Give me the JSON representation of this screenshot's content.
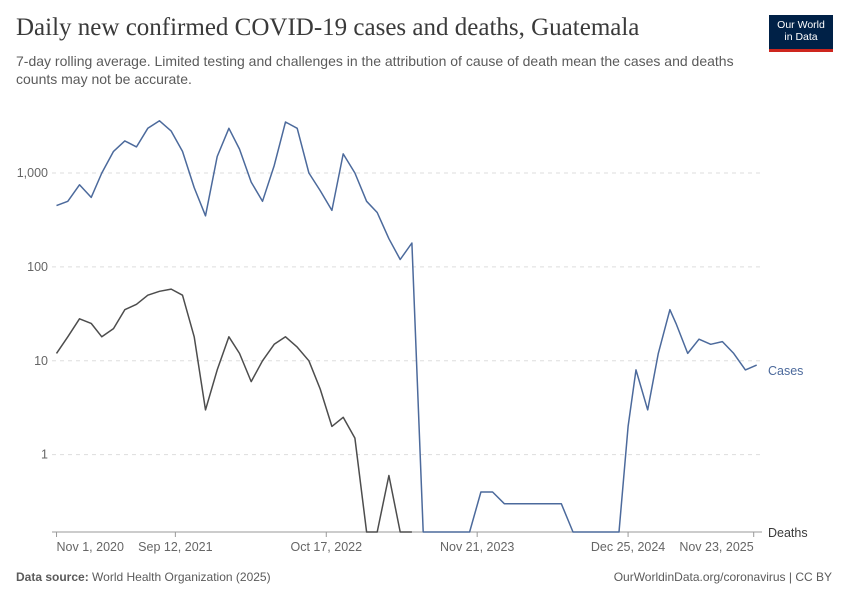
{
  "header": {
    "title": "Daily new confirmed COVID-19 cases and deaths, Guatemala",
    "subtitle": "7-day rolling average. Limited testing and challenges in the attribution of cause of death mean the cases and deaths counts may not be accurate."
  },
  "logo": {
    "line1": "Our World",
    "line2": "in Data",
    "bg_color": "#002147",
    "accent_color": "#ce261e"
  },
  "footer": {
    "source_label": "Data source:",
    "source_text": "World Health Organization (2025)",
    "url_text": "OurWorldinData.org/coronavirus | CC BY"
  },
  "chart_data": {
    "type": "line",
    "y_scale": "log",
    "grid": "horizontal dashed",
    "y_ticks": [
      {
        "value": 1,
        "label": "1"
      },
      {
        "value": 10,
        "label": "10"
      },
      {
        "value": 100,
        "label": "100"
      },
      {
        "value": 1000,
        "label": "1,000"
      }
    ],
    "x_ticks": [
      {
        "date": "2020-11-01",
        "label": "Nov 1, 2020"
      },
      {
        "date": "2021-09-12",
        "label": "Sep 12, 2021"
      },
      {
        "date": "2022-10-17",
        "label": "Oct 17, 2022"
      },
      {
        "date": "2023-11-21",
        "label": "Nov 21, 2023"
      },
      {
        "date": "2024-12-25",
        "label": "Dec 25, 2024"
      },
      {
        "date": "2025-11-23",
        "label": "Nov 23, 2025"
      }
    ],
    "series": [
      {
        "name": "Cases",
        "color": "#4c6a9c",
        "points": [
          [
            "2020-11-01",
            450
          ],
          [
            "2020-12-01",
            500
          ],
          [
            "2021-01-01",
            750
          ],
          [
            "2021-02-01",
            550
          ],
          [
            "2021-03-01",
            1000
          ],
          [
            "2021-04-01",
            1700
          ],
          [
            "2021-05-01",
            2200
          ],
          [
            "2021-06-01",
            1900
          ],
          [
            "2021-07-01",
            3000
          ],
          [
            "2021-08-01",
            3600
          ],
          [
            "2021-09-01",
            2800
          ],
          [
            "2021-10-01",
            1700
          ],
          [
            "2021-11-01",
            700
          ],
          [
            "2021-12-01",
            350
          ],
          [
            "2022-01-01",
            1500
          ],
          [
            "2022-02-01",
            3000
          ],
          [
            "2022-03-01",
            1800
          ],
          [
            "2022-04-01",
            800
          ],
          [
            "2022-05-01",
            500
          ],
          [
            "2022-06-01",
            1200
          ],
          [
            "2022-07-01",
            3500
          ],
          [
            "2022-08-01",
            3000
          ],
          [
            "2022-09-01",
            1000
          ],
          [
            "2022-10-01",
            650
          ],
          [
            "2022-11-01",
            400
          ],
          [
            "2022-12-01",
            1600
          ],
          [
            "2023-01-01",
            1000
          ],
          [
            "2023-02-01",
            500
          ],
          [
            "2023-03-01",
            380
          ],
          [
            "2023-04-01",
            200
          ],
          [
            "2023-05-01",
            120
          ],
          [
            "2023-06-01",
            180
          ],
          [
            "2023-07-01",
            0.15
          ],
          [
            "2023-08-01",
            0.15
          ],
          [
            "2023-09-01",
            0.15
          ],
          [
            "2023-10-01",
            0.15
          ],
          [
            "2023-11-01",
            0.15
          ],
          [
            "2023-12-01",
            0.4
          ],
          [
            "2024-01-01",
            0.4
          ],
          [
            "2024-02-01",
            0.3
          ],
          [
            "2024-03-01",
            0.3
          ],
          [
            "2024-04-01",
            0.3
          ],
          [
            "2024-05-01",
            0.3
          ],
          [
            "2024-06-01",
            0.3
          ],
          [
            "2024-07-01",
            0.3
          ],
          [
            "2024-08-01",
            0.15
          ],
          [
            "2024-09-01",
            0.15
          ],
          [
            "2024-10-01",
            0.15
          ],
          [
            "2024-11-01",
            0.15
          ],
          [
            "2024-12-01",
            0.15
          ],
          [
            "2024-12-25",
            2
          ],
          [
            "2025-01-15",
            8
          ],
          [
            "2025-02-15",
            3
          ],
          [
            "2025-03-15",
            12
          ],
          [
            "2025-04-15",
            35
          ],
          [
            "2025-05-01",
            25
          ],
          [
            "2025-06-01",
            12
          ],
          [
            "2025-07-01",
            17
          ],
          [
            "2025-08-01",
            15
          ],
          [
            "2025-09-01",
            16
          ],
          [
            "2025-10-01",
            12
          ],
          [
            "2025-11-01",
            8
          ],
          [
            "2025-12-01",
            9
          ]
        ]
      },
      {
        "name": "Deaths",
        "color": "#4d4d4d",
        "points": [
          [
            "2020-11-01",
            12
          ],
          [
            "2020-12-01",
            18
          ],
          [
            "2021-01-01",
            28
          ],
          [
            "2021-02-01",
            25
          ],
          [
            "2021-03-01",
            18
          ],
          [
            "2021-04-01",
            22
          ],
          [
            "2021-05-01",
            35
          ],
          [
            "2021-06-01",
            40
          ],
          [
            "2021-07-01",
            50
          ],
          [
            "2021-08-01",
            55
          ],
          [
            "2021-09-01",
            58
          ],
          [
            "2021-10-01",
            50
          ],
          [
            "2021-11-01",
            18
          ],
          [
            "2021-12-01",
            3
          ],
          [
            "2022-01-01",
            8
          ],
          [
            "2022-02-01",
            18
          ],
          [
            "2022-03-01",
            12
          ],
          [
            "2022-04-01",
            6
          ],
          [
            "2022-05-01",
            10
          ],
          [
            "2022-06-01",
            15
          ],
          [
            "2022-07-01",
            18
          ],
          [
            "2022-08-01",
            14
          ],
          [
            "2022-09-01",
            10
          ],
          [
            "2022-10-01",
            5
          ],
          [
            "2022-11-01",
            2
          ],
          [
            "2022-12-01",
            2.5
          ],
          [
            "2023-01-01",
            1.5
          ],
          [
            "2023-02-01",
            0.15
          ],
          [
            "2023-03-01",
            0.15
          ],
          [
            "2023-04-01",
            0.6
          ],
          [
            "2023-05-01",
            0.15
          ],
          [
            "2023-06-01",
            0.15
          ]
        ]
      }
    ],
    "series_labels": {
      "cases": "Cases",
      "deaths": "Deaths"
    }
  }
}
